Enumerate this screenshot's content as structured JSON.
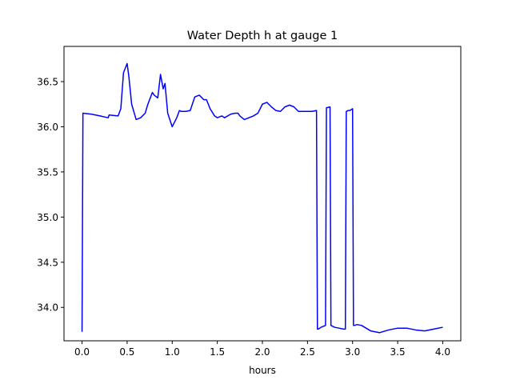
{
  "chart_data": {
    "type": "line",
    "title": "Water Depth h at gauge 1",
    "xlabel": "hours",
    "ylabel": "",
    "xlim": [
      -0.2,
      4.2
    ],
    "ylim": [
      33.63,
      36.89
    ],
    "xticks": [
      0.0,
      0.5,
      1.0,
      1.5,
      2.0,
      2.5,
      3.0,
      3.5,
      4.0
    ],
    "xtick_labels": [
      "0.0",
      "0.5",
      "1.0",
      "1.5",
      "2.0",
      "2.5",
      "3.0",
      "3.5",
      "4.0"
    ],
    "yticks": [
      34.0,
      34.5,
      35.0,
      35.5,
      36.0,
      36.5
    ],
    "ytick_labels": [
      "34.0",
      "34.5",
      "35.0",
      "35.5",
      "36.0",
      "36.5"
    ],
    "grid": false,
    "legend": "none",
    "series": [
      {
        "color": "#0000ff",
        "x": [
          0.0,
          0.01,
          0.1,
          0.2,
          0.29,
          0.3,
          0.4,
          0.43,
          0.46,
          0.5,
          0.52,
          0.55,
          0.6,
          0.65,
          0.7,
          0.73,
          0.78,
          0.8,
          0.84,
          0.87,
          0.9,
          0.92,
          0.95,
          1.0,
          1.05,
          1.08,
          1.1,
          1.15,
          1.2,
          1.25,
          1.3,
          1.35,
          1.38,
          1.42,
          1.47,
          1.5,
          1.55,
          1.58,
          1.65,
          1.7,
          1.73,
          1.75,
          1.8,
          1.85,
          1.9,
          1.95,
          2.0,
          2.05,
          2.1,
          2.15,
          2.2,
          2.25,
          2.3,
          2.35,
          2.4,
          2.45,
          2.5,
          2.55,
          2.6,
          2.61,
          2.62,
          2.65,
          2.7,
          2.71,
          2.75,
          2.76,
          2.8,
          2.85,
          2.9,
          2.92,
          2.93,
          2.95,
          2.97,
          3.0,
          3.01,
          3.02,
          3.05,
          3.1,
          3.2,
          3.3,
          3.4,
          3.5,
          3.6,
          3.7,
          3.8,
          3.9,
          4.0
        ],
        "y": [
          33.73,
          36.15,
          36.14,
          36.12,
          36.1,
          36.13,
          36.12,
          36.2,
          36.6,
          36.7,
          36.55,
          36.25,
          36.08,
          36.1,
          36.15,
          36.25,
          36.38,
          36.35,
          36.32,
          36.58,
          36.42,
          36.48,
          36.15,
          36.0,
          36.1,
          36.18,
          36.17,
          36.17,
          36.18,
          36.33,
          36.35,
          36.3,
          36.3,
          36.2,
          36.12,
          36.1,
          36.12,
          36.1,
          36.14,
          36.15,
          36.15,
          36.12,
          36.08,
          36.1,
          36.12,
          36.15,
          36.25,
          36.27,
          36.22,
          36.18,
          36.17,
          36.22,
          36.24,
          36.22,
          36.17,
          36.17,
          36.17,
          36.17,
          36.18,
          33.76,
          33.76,
          33.78,
          33.8,
          36.21,
          36.22,
          33.8,
          33.78,
          33.77,
          33.76,
          33.76,
          36.17,
          36.18,
          36.18,
          36.2,
          33.8,
          33.8,
          33.81,
          33.8,
          33.74,
          33.72,
          33.75,
          33.77,
          33.77,
          33.75,
          33.74,
          33.76,
          33.78
        ]
      }
    ]
  }
}
